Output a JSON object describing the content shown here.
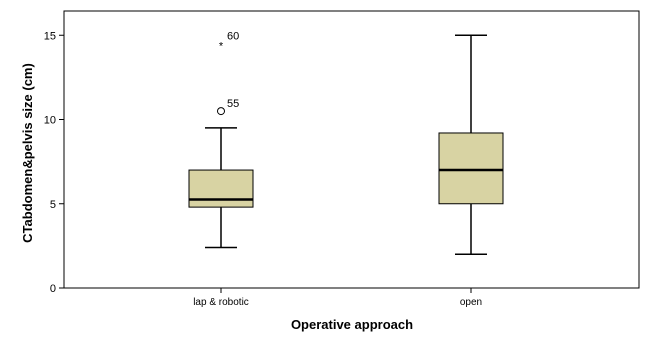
{
  "chart_data": {
    "type": "boxplot",
    "xlabel": "Operative approach",
    "ylabel": "CTabdomen&pelvis size (cm)",
    "ylim": [
      0,
      15.5
    ],
    "yticks": [
      0,
      5,
      10,
      15
    ],
    "grid": false,
    "colors": {
      "box_fill": "#d8d3a3",
      "stroke": "#000000",
      "background": "#ffffff"
    },
    "categories": [
      "lap & robotic",
      "open"
    ],
    "boxes": [
      {
        "category": "lap & robotic",
        "min": 2.4,
        "q1": 4.8,
        "median": 5.25,
        "q3": 7.0,
        "max": 9.5,
        "outliers": [
          {
            "value": 10.5,
            "marker": "circle",
            "label": "55"
          },
          {
            "value": 14.5,
            "marker": "star",
            "label": "60"
          }
        ]
      },
      {
        "category": "open",
        "min": 2.0,
        "q1": 5.0,
        "median": 7.0,
        "q3": 9.2,
        "max": 15.0,
        "outliers": []
      }
    ]
  }
}
